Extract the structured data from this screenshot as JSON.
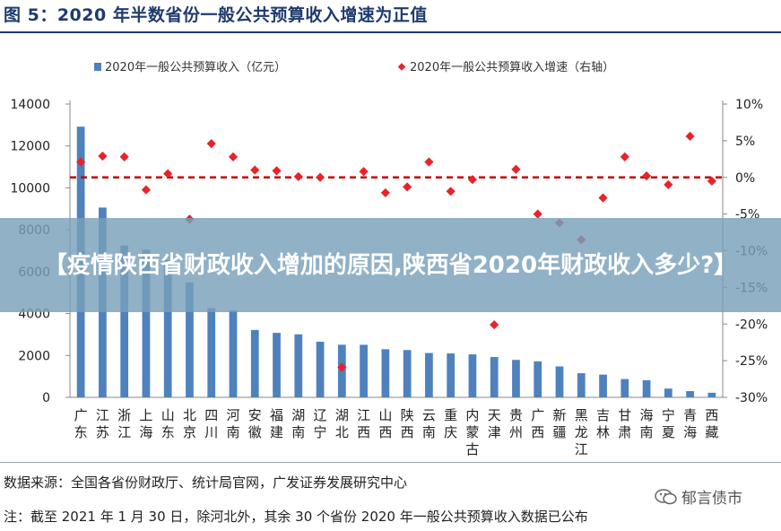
{
  "figure_title": "图 5：2020 年半数省份一般公共预算收入增速为正值",
  "banner": "【疫情陕西省财政收入增加的原因,陕西省2020年财政收入多少?】",
  "source": "数据来源：全国各省份财政厅、统计局官网，广发证券发展研究中心",
  "note": "注：截至 2021 年 1 月 30 日，除河北外，其余 30 个省份 2020 年一般公共预算收入数据已公布",
  "watermark": "郁言债市",
  "chart_data": {
    "type": "bar",
    "categories": [
      "广东",
      "江苏",
      "浙江",
      "上海",
      "山东",
      "北京",
      "四川",
      "河南",
      "安徽",
      "福建",
      "湖南",
      "辽宁",
      "湖北",
      "江西",
      "山西",
      "陕西",
      "云南",
      "重庆",
      "内蒙古",
      "天津",
      "贵州",
      "广西",
      "新疆",
      "黑龙江",
      "吉林",
      "甘肃",
      "海南",
      "宁夏",
      "青海",
      "西藏"
    ],
    "series": [
      {
        "name": "2020年一般公共预算收入（亿元）",
        "axis": "left",
        "kind": "bar",
        "color": "#4f81bd",
        "values": [
          12920,
          9059,
          7248,
          7046,
          6560,
          5484,
          4258,
          4155,
          3216,
          3079,
          3008,
          2655,
          2512,
          2508,
          2296,
          2257,
          2116,
          2095,
          2051,
          1924,
          1787,
          1717,
          1477,
          1152,
          1085,
          875,
          816,
          419,
          298,
          220
        ]
      },
      {
        "name": "2020年一般公共预算收入增速（右轴）",
        "axis": "right",
        "kind": "scatter",
        "color": "#e8232a",
        "values": [
          2.1,
          2.9,
          2.8,
          -1.7,
          0.5,
          -5.7,
          4.6,
          2.8,
          1.0,
          0.9,
          0.1,
          0.0,
          -25.9,
          0.8,
          -2.1,
          -1.3,
          2.1,
          -1.9,
          -0.3,
          -20.1,
          1.1,
          -5.0,
          -6.2,
          -8.5,
          -2.8,
          2.8,
          0.2,
          -1.0,
          5.6,
          -0.5
        ]
      }
    ],
    "ylim_left": [
      0,
      14000
    ],
    "yticks_left": [
      "0",
      "2000",
      "4000",
      "6000",
      "8000",
      "10000",
      "12000",
      "14000"
    ],
    "ylim_right": [
      -30,
      10
    ],
    "yticks_right": [
      "-30%",
      "-25%",
      "-20%",
      "-15%",
      "-10%",
      "-5%",
      "0%",
      "5%",
      "10%"
    ],
    "reference_line": 0,
    "legend": [
      "2020年一般公共预算收入（亿元）",
      "2020年一般公共预算收入增速（右轴）"
    ],
    "legend_position": "top"
  }
}
